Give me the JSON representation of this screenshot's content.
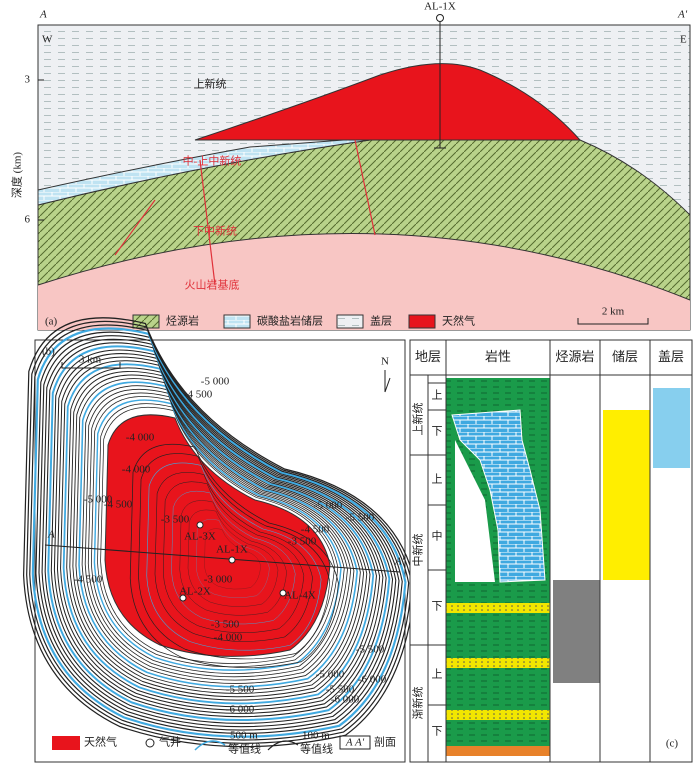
{
  "panel_a": {
    "label": "(a)",
    "section_start": "A",
    "section_end": "A'",
    "west": "W",
    "east": "E",
    "well": "AL-1X",
    "depth_axis": {
      "title": "深度 (km)",
      "ticks": [
        3,
        6
      ]
    },
    "units": [
      "上新统",
      "中-上中新统",
      "下中新统",
      "火山岩基底"
    ],
    "legend": [
      "烃源岩",
      "碳酸盐岩储层",
      "盖层",
      "天然气"
    ],
    "scale": "2 km"
  },
  "panel_b": {
    "label": "(b)",
    "scale": "3 km",
    "north": "N",
    "section_start": "A",
    "section_end": "A'",
    "wells": [
      "AL-1X",
      "AL-3X",
      "AL-2X",
      "AL-4X"
    ],
    "contour_labels": [
      "-4 000",
      "-5 000",
      "-4 500",
      "-5 000",
      "-4 500",
      "-4 000",
      "-3 500",
      "-3 000",
      "-3 500",
      "-5 000",
      "-5 500",
      "-4 500",
      "-3 500",
      "-4 000",
      "-4 500",
      "-5 000",
      "-5 500",
      "-6 000",
      "-5 500",
      "-6 000",
      "-5 500",
      "-6 000"
    ],
    "legend": {
      "gas": "天然气",
      "well": "气井",
      "contour_500": [
        "500 m",
        "等值线"
      ],
      "contour_100": [
        "100 m",
        "等值线"
      ],
      "section_symbol": "A  A'",
      "section": "剖面"
    }
  },
  "panel_c": {
    "label": "(c)",
    "headers": [
      "地层",
      "岩性",
      "烃源岩",
      "储层",
      "盖层"
    ],
    "series": [
      {
        "name": "上新统",
        "subdivisions": [
          "上",
          "下"
        ]
      },
      {
        "name": "中新统",
        "subdivisions": [
          "上",
          "中",
          "下"
        ]
      },
      {
        "name": "渐新统",
        "subdivisions": [
          "上",
          "下"
        ]
      }
    ]
  }
}
